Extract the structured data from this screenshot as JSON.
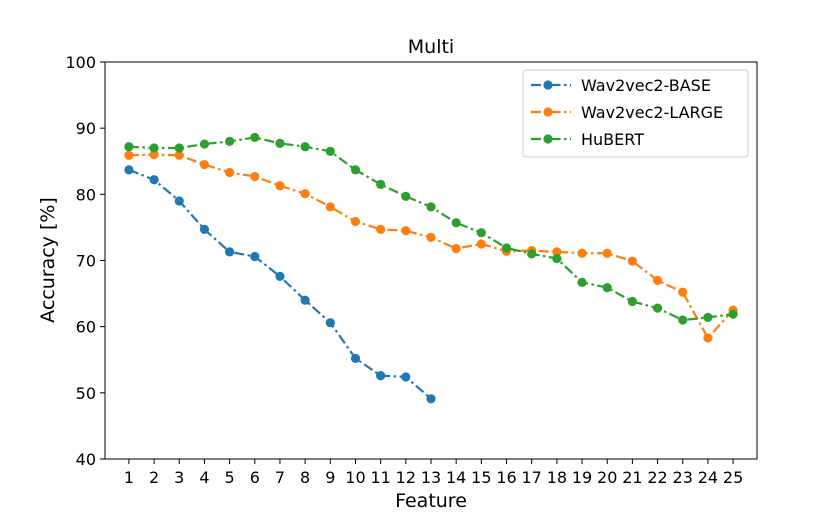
{
  "chart_data": {
    "type": "line",
    "title": "Multi",
    "xlabel": "Feature",
    "ylabel": "Accuracy [%]",
    "ylim": [
      40,
      100
    ],
    "yticks": [
      40,
      50,
      60,
      70,
      80,
      90,
      100
    ],
    "x": [
      1,
      2,
      3,
      4,
      5,
      6,
      7,
      8,
      9,
      10,
      11,
      12,
      13,
      14,
      15,
      16,
      17,
      18,
      19,
      20,
      21,
      22,
      23,
      24,
      25
    ],
    "grid": false,
    "legend_position": "top-right",
    "series": [
      {
        "name": "Wav2vec2-BASE",
        "color": "#1f77b4",
        "x": [
          1,
          2,
          3,
          4,
          5,
          6,
          7,
          8,
          9,
          10,
          11,
          12,
          13
        ],
        "values": [
          83.7,
          82.2,
          79.0,
          74.7,
          71.3,
          70.6,
          67.6,
          64.0,
          60.6,
          55.2,
          52.6,
          52.4,
          49.1
        ]
      },
      {
        "name": "Wav2vec2-LARGE",
        "color": "#ff7f0e",
        "x": [
          1,
          2,
          3,
          4,
          5,
          6,
          7,
          8,
          9,
          10,
          11,
          12,
          13,
          14,
          15,
          16,
          17,
          18,
          19,
          20,
          21,
          22,
          23,
          24,
          25
        ],
        "values": [
          85.9,
          86.0,
          85.9,
          84.5,
          83.3,
          82.7,
          81.3,
          80.1,
          78.1,
          75.9,
          74.7,
          74.5,
          73.5,
          71.8,
          72.5,
          71.4,
          71.5,
          71.3,
          71.1,
          71.1,
          69.9,
          67.0,
          65.2,
          58.3,
          62.5
        ]
      },
      {
        "name": "HuBERT",
        "color": "#2ca02c",
        "x": [
          1,
          2,
          3,
          4,
          5,
          6,
          7,
          8,
          9,
          10,
          11,
          12,
          13,
          14,
          15,
          16,
          17,
          18,
          19,
          20,
          21,
          22,
          23,
          24,
          25
        ],
        "values": [
          87.2,
          87.0,
          87.0,
          87.6,
          88.0,
          88.6,
          87.7,
          87.2,
          86.5,
          83.7,
          81.5,
          79.7,
          78.1,
          75.7,
          74.2,
          71.9,
          71.0,
          70.3,
          66.7,
          65.9,
          63.8,
          62.8,
          61.0,
          61.4,
          61.9
        ]
      }
    ]
  }
}
